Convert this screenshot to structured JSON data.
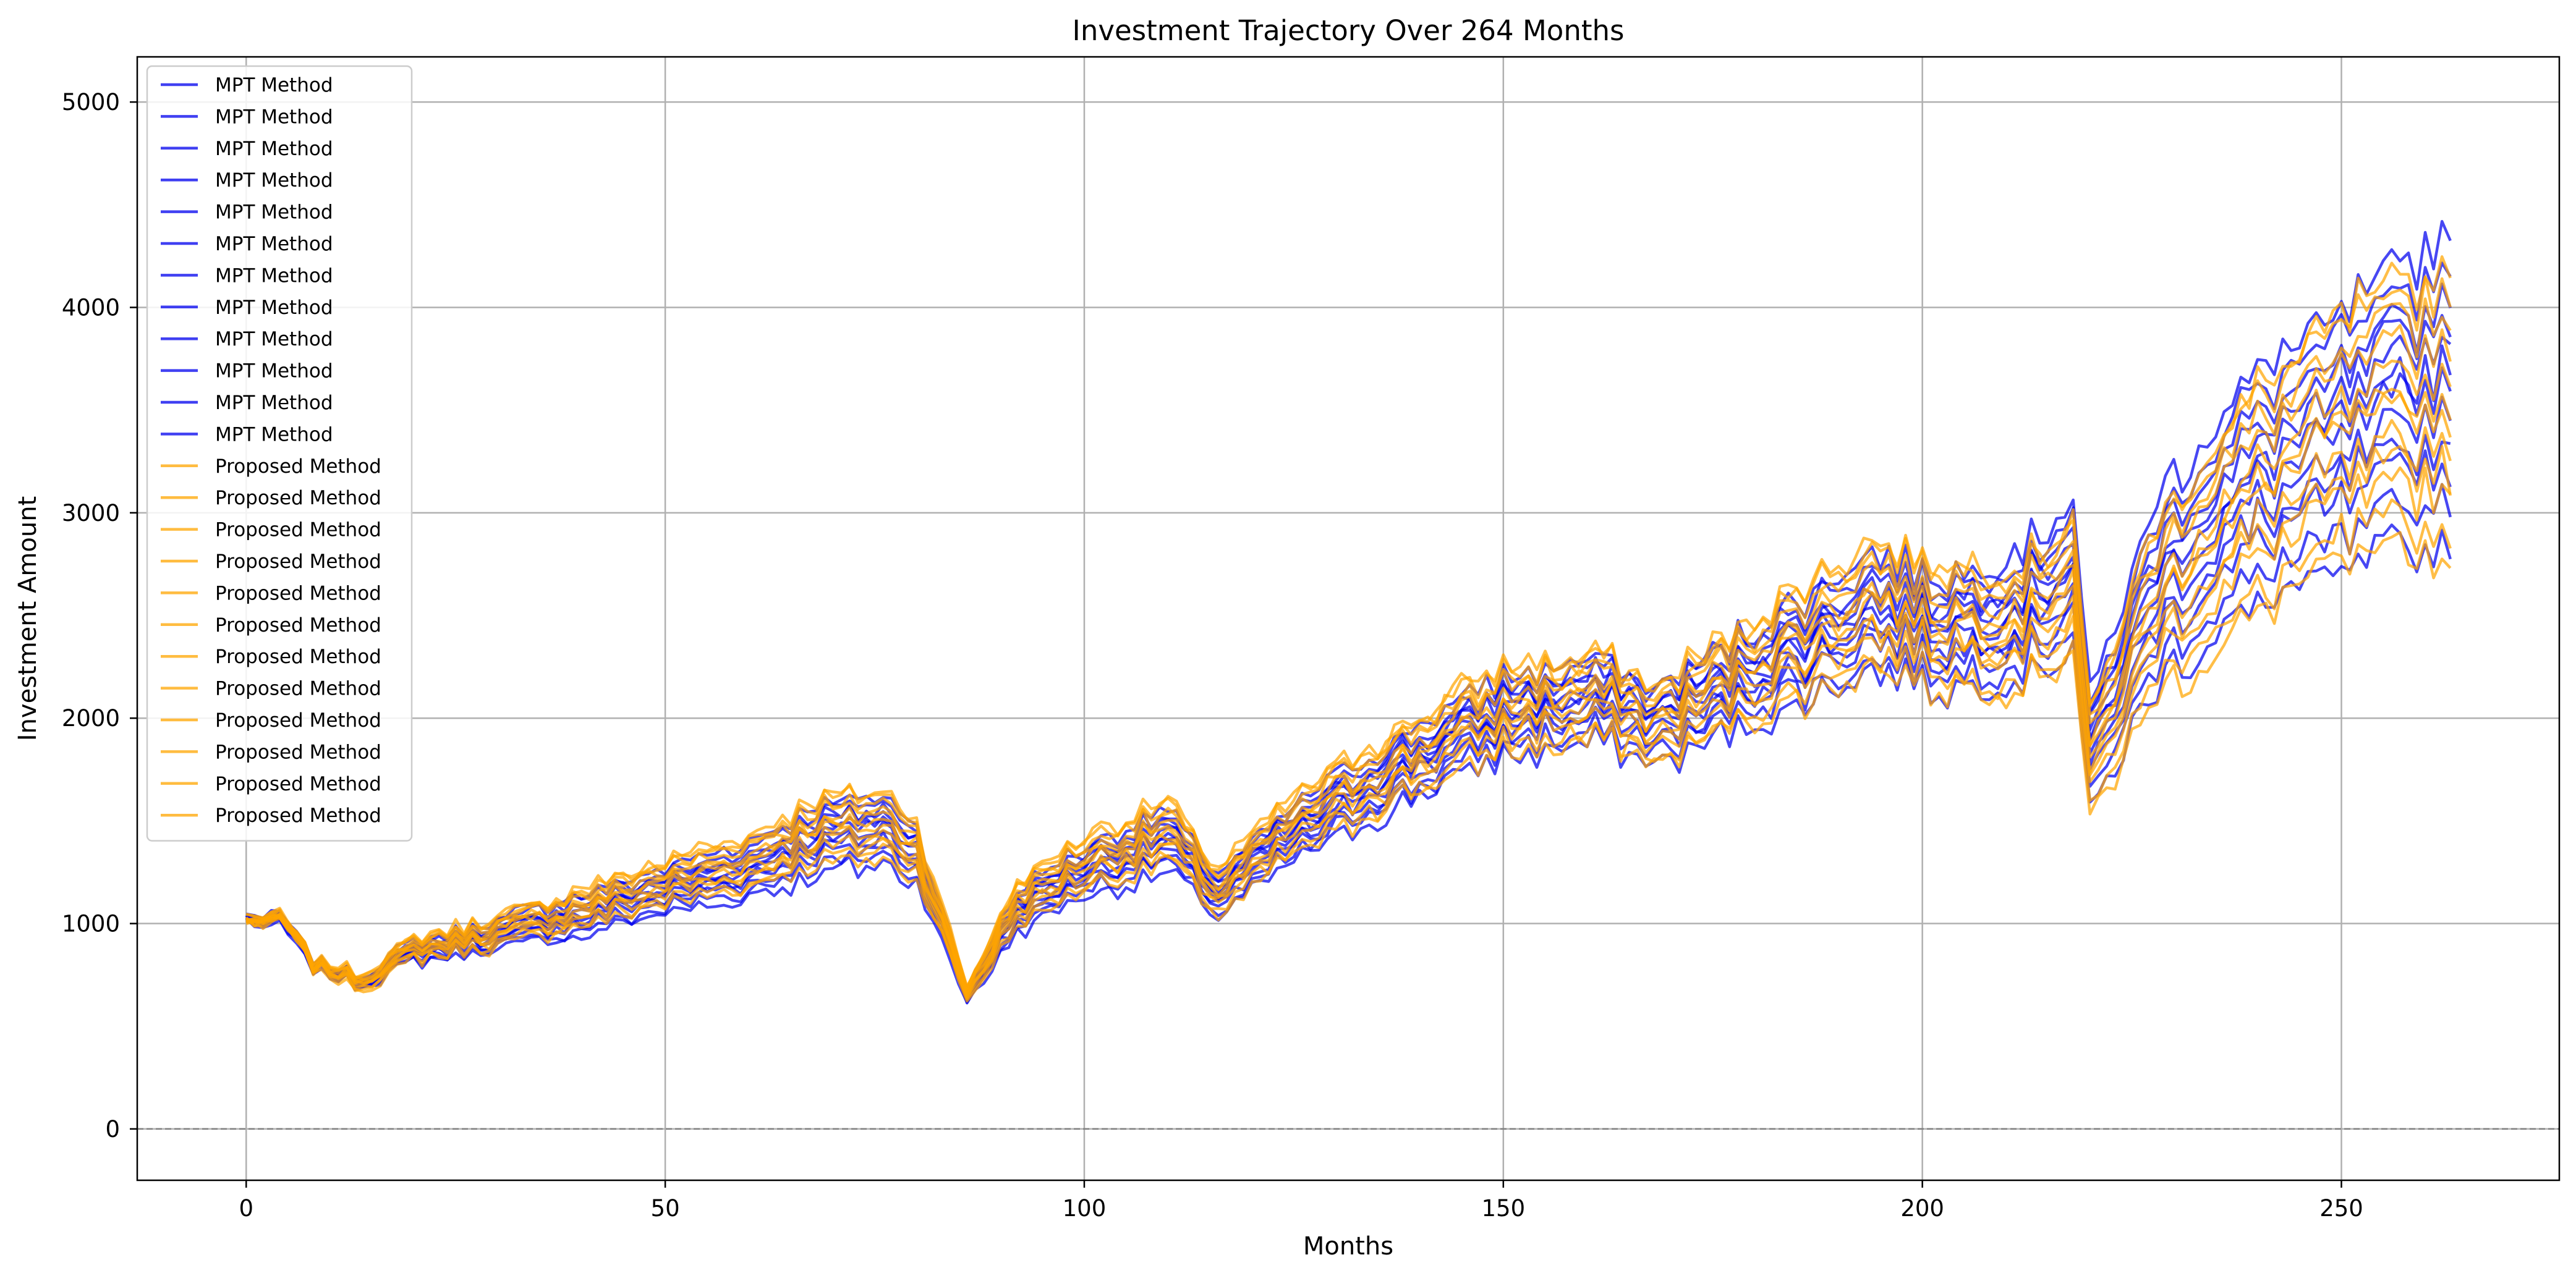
{
  "chart_data": {
    "type": "line",
    "title": "Investment Trajectory Over 264 Months",
    "xlabel": "Months",
    "ylabel": "Investment Amount",
    "xlim": [
      -13,
      276
    ],
    "ylim": [
      -250,
      5220
    ],
    "xticks": [
      0,
      50,
      100,
      150,
      200,
      250
    ],
    "yticks": [
      0,
      1000,
      2000,
      3000,
      4000,
      5000
    ],
    "grid": true,
    "legend_position": "upper-left",
    "reference_line": {
      "y": 0,
      "style": "dashed",
      "color": "#808080"
    },
    "colors": {
      "mpt": "#0000ee",
      "proposed": "#ffa500",
      "grid": "#b0b0b0"
    },
    "series_groups": [
      {
        "name": "MPT Method",
        "color": "#0000ee",
        "count": 12,
        "anchors": {
          "x": [
            0,
            2,
            4,
            8,
            14,
            20,
            30,
            40,
            50,
            60,
            68,
            76,
            80,
            86,
            92,
            100,
            110,
            116,
            124,
            134,
            150,
            162,
            168,
            180,
            194,
            202,
            212,
            218,
            220,
            228,
            240,
            250,
            263
          ],
          "center": [
            1020,
            1010,
            1030,
            800,
            720,
            860,
            940,
            1040,
            1150,
            1250,
            1400,
            1450,
            1330,
            650,
            1050,
            1250,
            1400,
            1130,
            1400,
            1650,
            2000,
            2080,
            1950,
            2200,
            2500,
            2400,
            2500,
            2700,
            1800,
            2600,
            3100,
            3300,
            3600
          ],
          "spread": [
            0.01,
            0.02,
            0.02,
            0.03,
            0.04,
            0.06,
            0.08,
            0.1,
            0.1,
            0.11,
            0.13,
            0.12,
            0.11,
            0.06,
            0.1,
            0.1,
            0.11,
            0.1,
            0.1,
            0.1,
            0.1,
            0.1,
            0.1,
            0.11,
            0.12,
            0.12,
            0.13,
            0.14,
            0.16,
            0.18,
            0.2,
            0.2,
            0.22
          ]
        },
        "offsets": [
          0.2,
          -0.4,
          0.8,
          0.1,
          -0.1,
          0.6,
          -0.9,
          0.35,
          -0.65,
          1.0,
          -0.25,
          0.5
        ]
      },
      {
        "name": "Proposed Method",
        "color": "#ffa500",
        "count": 12,
        "anchors": {
          "x": [
            0,
            2,
            4,
            8,
            14,
            20,
            30,
            40,
            50,
            60,
            68,
            76,
            80,
            86,
            92,
            100,
            110,
            116,
            124,
            134,
            150,
            162,
            168,
            180,
            194,
            202,
            212,
            218,
            220,
            228,
            240,
            250,
            263
          ],
          "center": [
            1020,
            1010,
            1040,
            800,
            720,
            880,
            960,
            1080,
            1200,
            1300,
            1450,
            1480,
            1360,
            660,
            1100,
            1300,
            1450,
            1150,
            1450,
            1700,
            2050,
            2100,
            1950,
            2250,
            2550,
            2450,
            2450,
            2650,
            1750,
            2550,
            3050,
            3350,
            3500
          ],
          "spread": [
            0.01,
            0.02,
            0.02,
            0.03,
            0.05,
            0.06,
            0.07,
            0.08,
            0.09,
            0.1,
            0.11,
            0.11,
            0.1,
            0.06,
            0.1,
            0.1,
            0.1,
            0.1,
            0.1,
            0.1,
            0.1,
            0.1,
            0.1,
            0.11,
            0.12,
            0.12,
            0.12,
            0.13,
            0.15,
            0.17,
            0.18,
            0.18,
            0.2
          ]
        },
        "offsets": [
          0.15,
          -0.5,
          0.9,
          0.3,
          -0.8,
          0.55,
          -0.2,
          0.7,
          -0.35,
          0.05,
          1.0,
          -1.0
        ]
      }
    ],
    "noise_seed": 7,
    "months": 264,
    "legend_entries": [
      "MPT Method",
      "MPT Method",
      "MPT Method",
      "MPT Method",
      "MPT Method",
      "MPT Method",
      "MPT Method",
      "MPT Method",
      "MPT Method",
      "MPT Method",
      "MPT Method",
      "MPT Method",
      "Proposed Method",
      "Proposed Method",
      "Proposed Method",
      "Proposed Method",
      "Proposed Method",
      "Proposed Method",
      "Proposed Method",
      "Proposed Method",
      "Proposed Method",
      "Proposed Method",
      "Proposed Method",
      "Proposed Method"
    ],
    "legend_colors": [
      "#0000ee",
      "#0000ee",
      "#0000ee",
      "#0000ee",
      "#0000ee",
      "#0000ee",
      "#0000ee",
      "#0000ee",
      "#0000ee",
      "#0000ee",
      "#0000ee",
      "#0000ee",
      "#ffa500",
      "#ffa500",
      "#ffa500",
      "#ffa500",
      "#ffa500",
      "#ffa500",
      "#ffa500",
      "#ffa500",
      "#ffa500",
      "#ffa500",
      "#ffa500",
      "#ffa500"
    ]
  }
}
